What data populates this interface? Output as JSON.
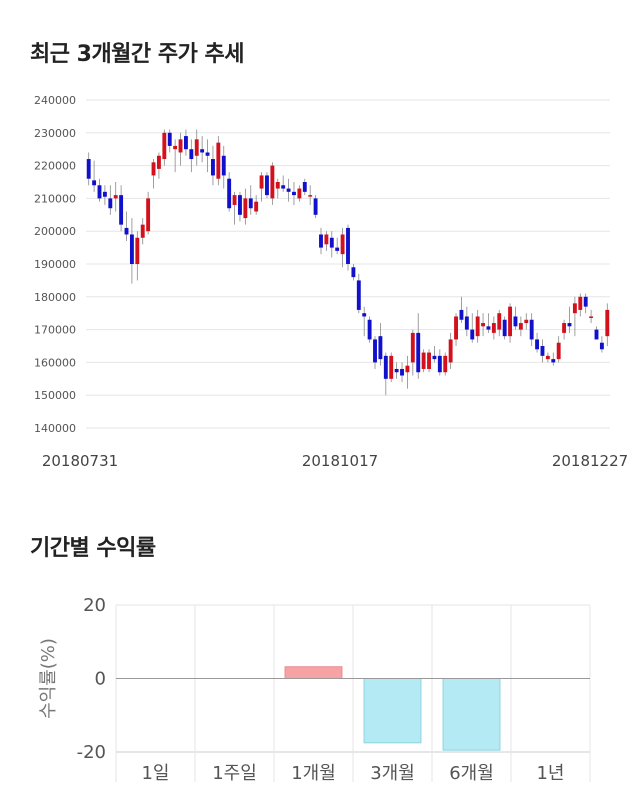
{
  "sections": {
    "price_title": "최근 3개월간 주가 추세",
    "return_title": "기간별 수익률"
  },
  "colors": {
    "up": "#d2111d",
    "down": "#1111cc",
    "positive_bar": "#f7a3a6",
    "negative_bar": "#b3eaf3",
    "grid": "#e6e6e6"
  },
  "chart_data": [
    {
      "type": "candlestick",
      "title": "최근 3개월간 주가 추세",
      "ylim": [
        140000,
        240000
      ],
      "yticks": [
        240000,
        230000,
        220000,
        210000,
        200000,
        190000,
        180000,
        170000,
        160000,
        150000,
        140000
      ],
      "xticks": [
        "20180731",
        "20181017",
        "20181227"
      ],
      "grid": true,
      "ohlc": [
        [
          222000,
          224000,
          214000,
          216000
        ],
        [
          215500,
          221500,
          212000,
          214000
        ],
        [
          214000,
          216000,
          209000,
          210000
        ],
        [
          212000,
          214000,
          208000,
          210500
        ],
        [
          210000,
          214000,
          205000,
          207000
        ],
        [
          210000,
          215000,
          206000,
          211000
        ],
        [
          211000,
          214000,
          200000,
          202000
        ],
        [
          201000,
          206000,
          197000,
          199000
        ],
        [
          199000,
          204000,
          184000,
          190000
        ],
        [
          190000,
          200000,
          185000,
          198000
        ],
        [
          198000,
          204000,
          196000,
          202000
        ],
        [
          200000,
          212000,
          199000,
          210000
        ],
        [
          217000,
          222000,
          213000,
          221000
        ],
        [
          219000,
          224000,
          216000,
          223000
        ],
        [
          222000,
          231000,
          220000,
          230000
        ],
        [
          230000,
          231000,
          224000,
          226000
        ],
        [
          225000,
          228000,
          218000,
          226000
        ],
        [
          224000,
          230000,
          220000,
          228000
        ],
        [
          229000,
          231000,
          223000,
          225000
        ],
        [
          225000,
          228000,
          218000,
          222000
        ],
        [
          223000,
          231000,
          220000,
          228000
        ],
        [
          225000,
          229000,
          221000,
          224000
        ],
        [
          224000,
          228000,
          218000,
          223000
        ],
        [
          222000,
          226000,
          214000,
          217000
        ],
        [
          216000,
          229000,
          214000,
          227000
        ],
        [
          223000,
          226000,
          213000,
          217000
        ],
        [
          216000,
          218000,
          206000,
          207000
        ],
        [
          208000,
          212000,
          202000,
          211000
        ],
        [
          211000,
          212000,
          203000,
          205000
        ],
        [
          204000,
          213000,
          202000,
          210000
        ],
        [
          210000,
          214000,
          205000,
          207000
        ],
        [
          206000,
          211000,
          205000,
          209000
        ],
        [
          213000,
          218000,
          209000,
          217000
        ],
        [
          217000,
          218000,
          210000,
          211000
        ],
        [
          210000,
          221000,
          208000,
          220000
        ],
        [
          213000,
          216000,
          210000,
          215000
        ],
        [
          214000,
          217000,
          212000,
          213000
        ],
        [
          213000,
          216000,
          209000,
          212000
        ],
        [
          212000,
          215000,
          208000,
          211000
        ],
        [
          210000,
          214000,
          209000,
          213000
        ],
        [
          215000,
          216000,
          211000,
          212000
        ],
        [
          211000,
          214000,
          208000,
          211000
        ],
        [
          210000,
          211000,
          204000,
          205000
        ],
        [
          199000,
          201000,
          193000,
          195000
        ],
        [
          196000,
          200000,
          194000,
          199000
        ],
        [
          198000,
          200000,
          192000,
          195000
        ],
        [
          195000,
          198000,
          193000,
          194000
        ],
        [
          193000,
          201000,
          189000,
          199000
        ],
        [
          201000,
          202000,
          188000,
          190000
        ],
        [
          189000,
          190000,
          185000,
          186000
        ],
        [
          185000,
          187000,
          175000,
          176000
        ],
        [
          175000,
          177000,
          168000,
          174000
        ],
        [
          173000,
          174000,
          166000,
          167000
        ],
        [
          167000,
          168000,
          158000,
          160000
        ],
        [
          168000,
          172000,
          159000,
          161000
        ],
        [
          162000,
          163000,
          150000,
          155000
        ],
        [
          155000,
          163000,
          154000,
          162000
        ],
        [
          158000,
          160000,
          155000,
          157000
        ],
        [
          158000,
          160000,
          154000,
          156000
        ],
        [
          157000,
          162000,
          152000,
          159000
        ],
        [
          160000,
          170000,
          156000,
          169000
        ],
        [
          169000,
          175000,
          155000,
          157000
        ],
        [
          158000,
          164000,
          157000,
          163000
        ],
        [
          158000,
          164000,
          157000,
          163000
        ],
        [
          162000,
          165000,
          160000,
          161000
        ],
        [
          162000,
          164000,
          156000,
          157000
        ],
        [
          157000,
          163000,
          156000,
          162000
        ],
        [
          160000,
          169000,
          158000,
          167000
        ],
        [
          167000,
          175000,
          165000,
          174000
        ],
        [
          176000,
          180000,
          172000,
          173000
        ],
        [
          174000,
          177000,
          168000,
          170000
        ],
        [
          170000,
          175000,
          166000,
          167000
        ],
        [
          168000,
          176000,
          166000,
          174000
        ],
        [
          171000,
          175000,
          168000,
          172000
        ],
        [
          171000,
          175000,
          169000,
          170000
        ],
        [
          169000,
          174000,
          167000,
          172000
        ],
        [
          170000,
          176000,
          168000,
          175000
        ],
        [
          173000,
          174000,
          167000,
          168000
        ],
        [
          168000,
          178000,
          166000,
          177000
        ],
        [
          174000,
          177000,
          170000,
          171000
        ],
        [
          170000,
          174000,
          168000,
          172000
        ],
        [
          172000,
          175000,
          170000,
          173000
        ],
        [
          173000,
          175000,
          165000,
          167000
        ],
        [
          167000,
          169000,
          163000,
          164000
        ],
        [
          165000,
          167000,
          160000,
          162000
        ],
        [
          161000,
          163000,
          160000,
          162000
        ],
        [
          161000,
          163000,
          159000,
          160000
        ],
        [
          161000,
          168000,
          160000,
          166000
        ],
        [
          169000,
          173000,
          167000,
          172000
        ],
        [
          172000,
          177000,
          169000,
          171000
        ],
        [
          175000,
          180000,
          168000,
          178000
        ],
        [
          176000,
          181000,
          174000,
          180000
        ],
        [
          180000,
          181000,
          175000,
          177000
        ],
        [
          174000,
          176000,
          172000,
          174000
        ],
        [
          170000,
          171000,
          167000,
          167000
        ],
        [
          166000,
          168000,
          163000,
          164000
        ],
        [
          168000,
          178000,
          165000,
          176000
        ]
      ]
    },
    {
      "type": "bar",
      "title": "기간별 수익률",
      "ylabel": "수익률(%)",
      "ylim": [
        -20,
        20
      ],
      "yticks": [
        20,
        0,
        -20
      ],
      "categories": [
        "1일",
        "1주일",
        "1개월",
        "3개월",
        "6개월",
        "1년"
      ],
      "values": [
        0,
        0,
        3.2,
        -17.5,
        -19.5,
        0
      ],
      "grid": true
    }
  ]
}
